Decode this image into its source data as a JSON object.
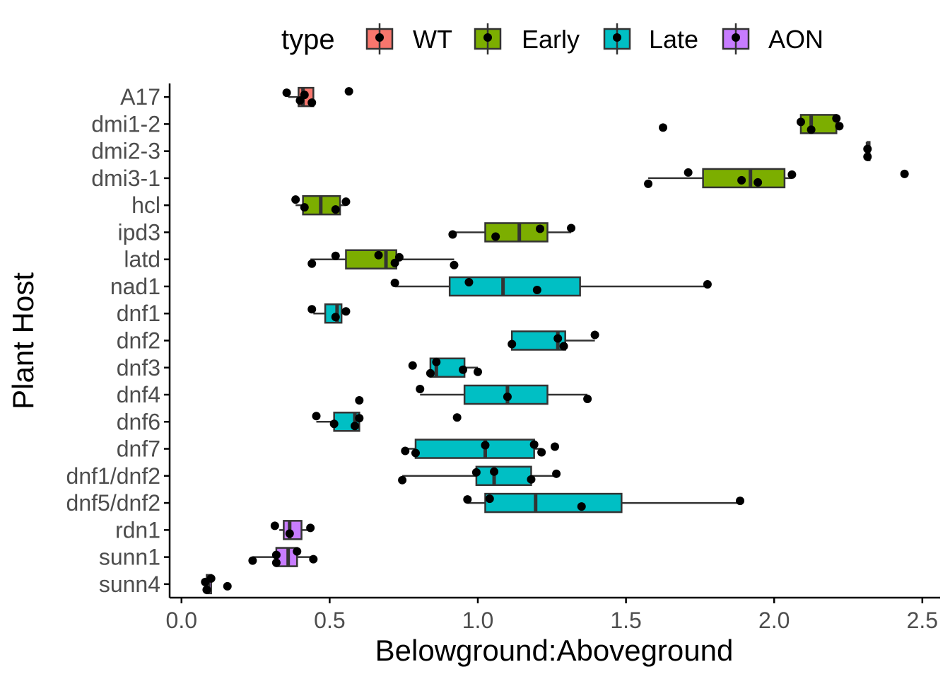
{
  "chart_data": {
    "type": "boxplot",
    "orientation": "horizontal",
    "xlabel": "Belowground:Aboveground",
    "ylabel": "Plant Host",
    "xlim": [
      -0.04,
      2.56
    ],
    "x_ticks": [
      0.0,
      0.5,
      1.0,
      1.5,
      2.0,
      2.5
    ],
    "x_tick_labels": [
      "0.0",
      "0.5",
      "1.0",
      "1.5",
      "2.0",
      "2.5"
    ],
    "grid": false,
    "legend": {
      "title": "type",
      "position": "top",
      "entries": [
        {
          "label": "WT",
          "color": "#F8766D"
        },
        {
          "label": "Early",
          "color": "#7CAE00"
        },
        {
          "label": "Late",
          "color": "#00BFC4"
        },
        {
          "label": "AON",
          "color": "#C77CFF"
        }
      ]
    },
    "categories": [
      "A17",
      "dmi1-2",
      "dmi2-3",
      "dmi3-1",
      "hcl",
      "ipd3",
      "latd",
      "nad1",
      "dnf1",
      "dnf2",
      "dnf3",
      "dnf4",
      "dnf6",
      "dnf7",
      "dnf1/dnf2",
      "dnf5/dnf2",
      "rdn1",
      "sunn1",
      "sunn4"
    ],
    "groups": [
      {
        "host": "A17",
        "type": "WT",
        "whisker_low": 0.36,
        "q1": 0.395,
        "median": 0.41,
        "q3": 0.445,
        "whisker_high": 0.445,
        "points": [
          0.355,
          0.4,
          0.415,
          0.44,
          0.565
        ]
      },
      {
        "host": "dmi1-2",
        "type": "Early",
        "whisker_low": 2.09,
        "q1": 2.09,
        "median": 2.125,
        "q3": 2.21,
        "whisker_high": 2.21,
        "points": [
          1.625,
          2.09,
          2.125,
          2.21,
          2.22
        ]
      },
      {
        "host": "dmi2-3",
        "type": "Early",
        "whisker_low": 2.315,
        "q1": 2.315,
        "median": 2.315,
        "q3": 2.315,
        "whisker_high": 2.315,
        "points": [
          2.315,
          2.315
        ]
      },
      {
        "host": "dmi3-1",
        "type": "Early",
        "whisker_low": 1.575,
        "q1": 1.76,
        "median": 1.92,
        "q3": 2.035,
        "whisker_high": 2.06,
        "points": [
          1.575,
          1.71,
          1.89,
          1.945,
          2.06,
          2.44
        ]
      },
      {
        "host": "hcl",
        "type": "Early",
        "whisker_low": 0.385,
        "q1": 0.41,
        "median": 0.47,
        "q3": 0.535,
        "whisker_high": 0.555,
        "points": [
          0.385,
          0.415,
          0.52,
          0.555
        ]
      },
      {
        "host": "ipd3",
        "type": "Early",
        "whisker_low": 0.92,
        "q1": 1.025,
        "median": 1.14,
        "q3": 1.235,
        "whisker_high": 1.315,
        "points": [
          0.915,
          1.06,
          1.21,
          1.315
        ]
      },
      {
        "host": "latd",
        "type": "Early",
        "whisker_low": 0.435,
        "q1": 0.555,
        "median": 0.69,
        "q3": 0.725,
        "whisker_high": 0.92,
        "points": [
          0.44,
          0.52,
          0.665,
          0.72,
          0.735,
          0.92
        ]
      },
      {
        "host": "nad1",
        "type": "Late",
        "whisker_low": 0.72,
        "q1": 0.905,
        "median": 1.085,
        "q3": 1.345,
        "whisker_high": 1.77,
        "points": [
          0.72,
          0.97,
          1.2,
          1.775
        ]
      },
      {
        "host": "dnf1",
        "type": "Late",
        "whisker_low": 0.445,
        "q1": 0.485,
        "median": 0.525,
        "q3": 0.54,
        "whisker_high": 0.555,
        "points": [
          0.44,
          0.52,
          0.555
        ]
      },
      {
        "host": "dnf2",
        "type": "Late",
        "whisker_low": 1.115,
        "q1": 1.115,
        "median": 1.27,
        "q3": 1.295,
        "whisker_high": 1.395,
        "points": [
          1.115,
          1.27,
          1.29,
          1.395
        ]
      },
      {
        "host": "dnf3",
        "type": "Late",
        "whisker_low": 0.84,
        "q1": 0.84,
        "median": 0.86,
        "q3": 0.955,
        "whisker_high": 1.0,
        "points": [
          0.78,
          0.84,
          0.86,
          0.95,
          1.0
        ]
      },
      {
        "host": "dnf4",
        "type": "Late",
        "whisker_low": 0.805,
        "q1": 0.955,
        "median": 1.1,
        "q3": 1.235,
        "whisker_high": 1.37,
        "points": [
          0.6,
          0.805,
          1.1,
          1.37
        ]
      },
      {
        "host": "dnf6",
        "type": "Late",
        "whisker_low": 0.455,
        "q1": 0.515,
        "median": 0.585,
        "q3": 0.6,
        "whisker_high": 0.6,
        "points": [
          0.455,
          0.515,
          0.585,
          0.6,
          0.93
        ]
      },
      {
        "host": "dnf7",
        "type": "Late",
        "whisker_low": 0.755,
        "q1": 0.79,
        "median": 1.025,
        "q3": 1.19,
        "whisker_high": 1.215,
        "points": [
          0.755,
          0.79,
          1.025,
          1.19,
          1.215,
          1.26
        ]
      },
      {
        "host": "dnf1/dnf2",
        "type": "Late",
        "whisker_low": 0.745,
        "q1": 0.995,
        "median": 1.055,
        "q3": 1.18,
        "whisker_high": 1.265,
        "points": [
          0.745,
          0.995,
          1.055,
          1.18,
          1.265
        ]
      },
      {
        "host": "dnf5/dnf2",
        "type": "Late",
        "whisker_low": 0.965,
        "q1": 1.025,
        "median": 1.195,
        "q3": 1.485,
        "whisker_high": 1.885,
        "points": [
          0.965,
          1.04,
          1.35,
          1.885
        ]
      },
      {
        "host": "rdn1",
        "type": "AON",
        "whisker_low": 0.33,
        "q1": 0.345,
        "median": 0.365,
        "q3": 0.405,
        "whisker_high": 0.435,
        "points": [
          0.315,
          0.365,
          0.435
        ]
      },
      {
        "host": "sunn1",
        "type": "AON",
        "whisker_low": 0.24,
        "q1": 0.32,
        "median": 0.36,
        "q3": 0.39,
        "whisker_high": 0.445,
        "points": [
          0.24,
          0.32,
          0.32,
          0.39,
          0.445
        ]
      },
      {
        "host": "sunn4",
        "type": "AON",
        "whisker_low": 0.085,
        "q1": 0.085,
        "median": 0.09,
        "q3": 0.1,
        "whisker_high": 0.1,
        "points": [
          0.08,
          0.085,
          0.1,
          0.155
        ]
      }
    ]
  }
}
